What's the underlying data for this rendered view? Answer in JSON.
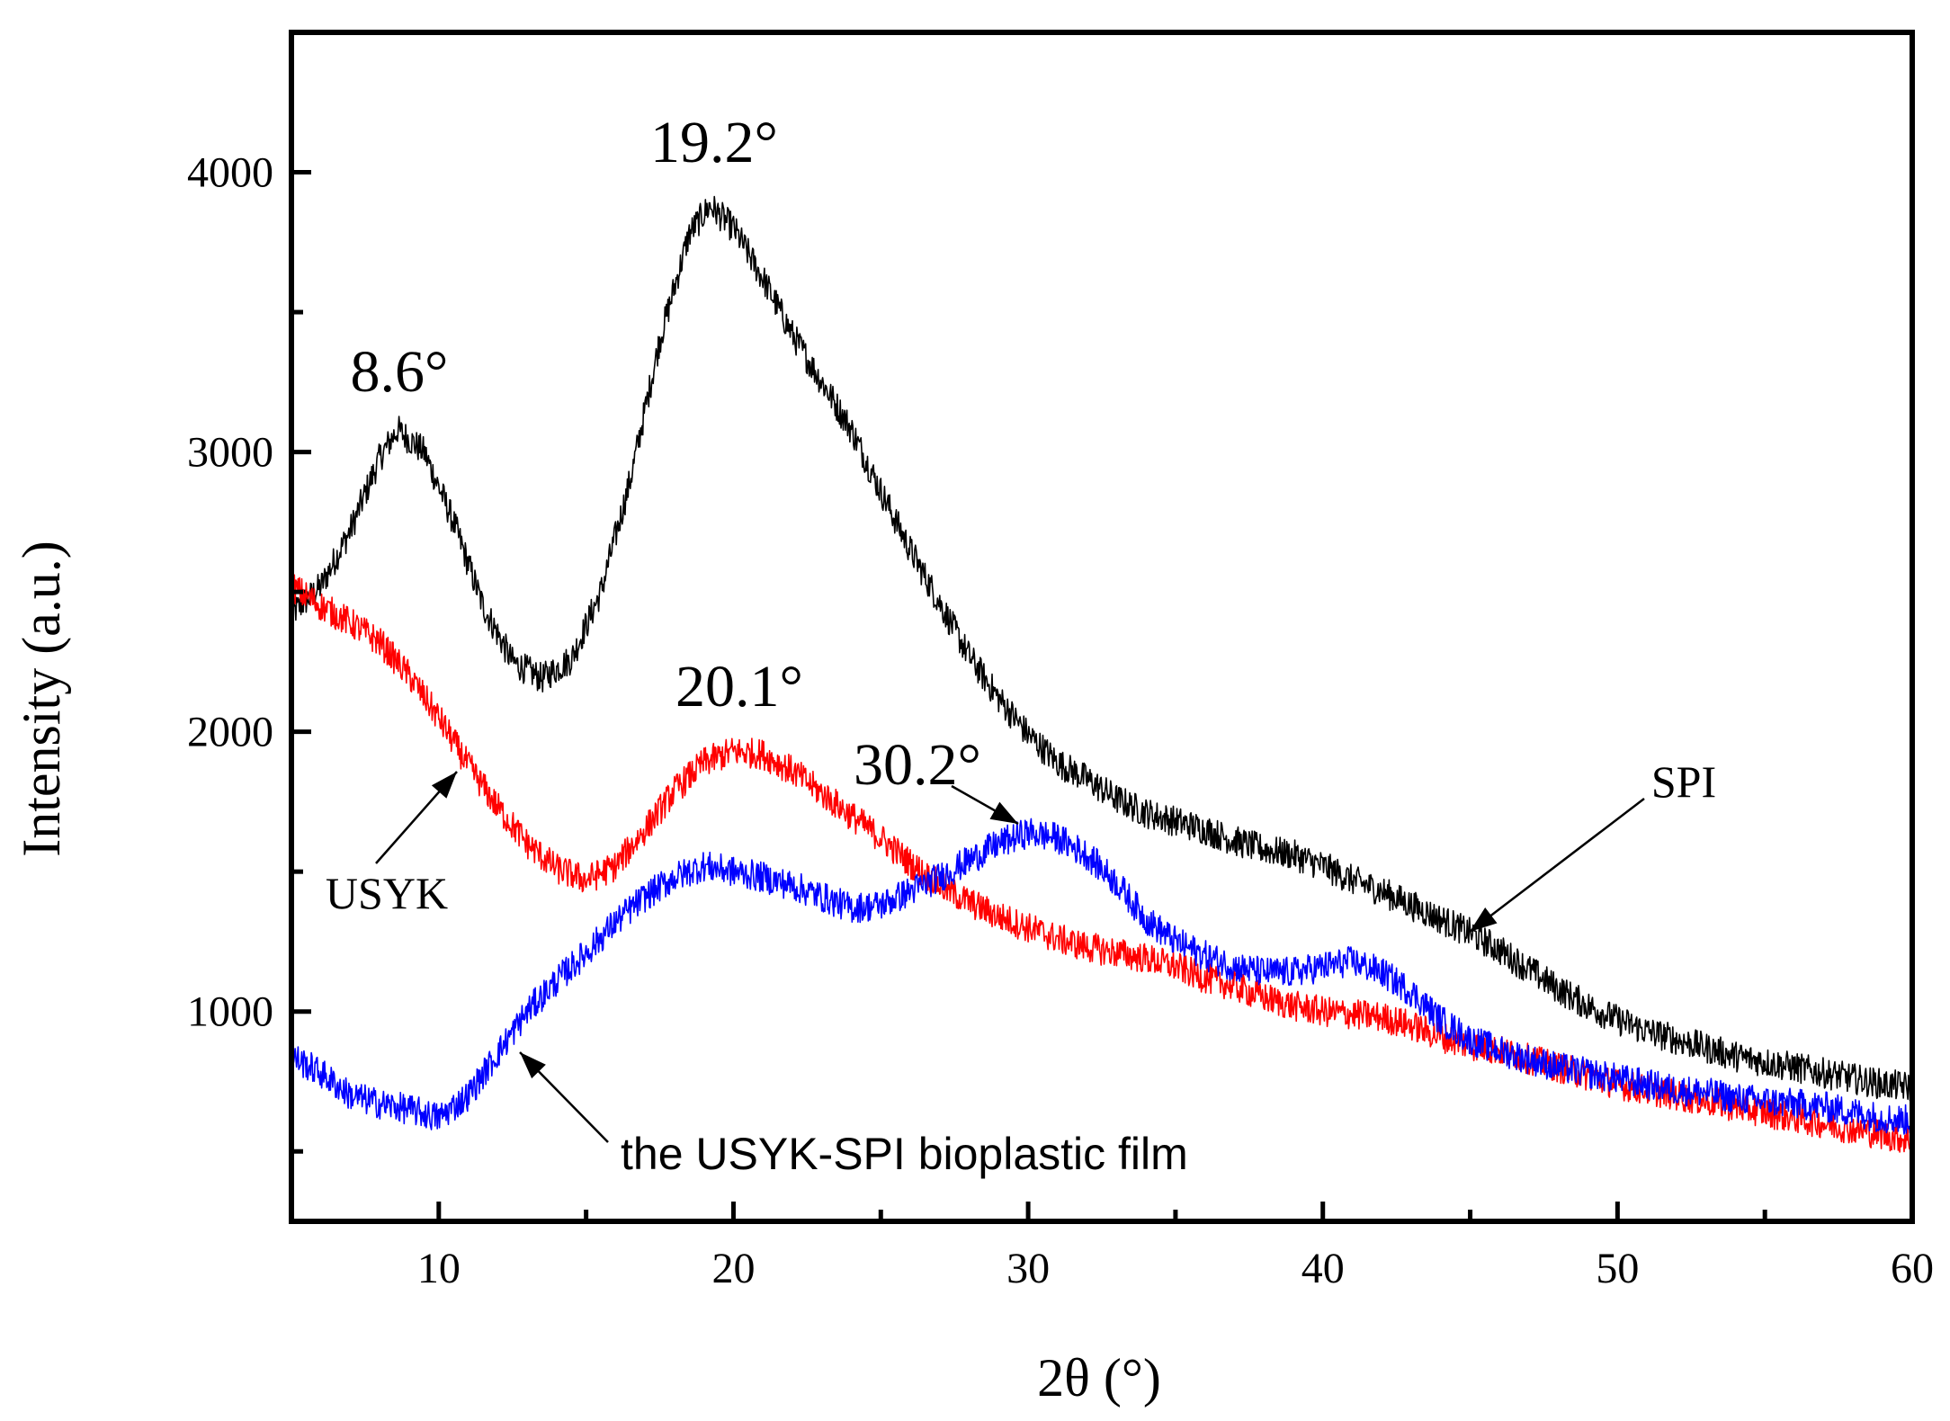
{
  "chart_data": {
    "type": "line",
    "title": "",
    "xlabel": "2θ (°)",
    "ylabel": "Intensity (a.u.)",
    "xlim": [
      5,
      60
    ],
    "ylim": [
      250,
      4500
    ],
    "x_ticks": [
      10,
      20,
      30,
      40,
      50,
      60
    ],
    "x_tick_labels": [
      "10",
      "20",
      "30",
      "40",
      "50",
      "60"
    ],
    "x_minor_ticks": [
      15,
      25,
      35,
      45,
      55
    ],
    "y_ticks": [
      1000,
      2000,
      3000,
      4000
    ],
    "y_tick_labels": [
      "1000",
      "2000",
      "3000",
      "4000"
    ],
    "y_minor_ticks": [
      500,
      1500,
      2500,
      3500
    ],
    "grid": false,
    "series": [
      {
        "name": "SPI",
        "color": "#000000",
        "points": [
          [
            5,
            2420
          ],
          [
            6,
            2520
          ],
          [
            7,
            2720
          ],
          [
            8,
            2980
          ],
          [
            8.6,
            3080
          ],
          [
            9.5,
            3000
          ],
          [
            10.5,
            2750
          ],
          [
            11.5,
            2450
          ],
          [
            12.5,
            2250
          ],
          [
            13.5,
            2190
          ],
          [
            14.5,
            2260
          ],
          [
            15.5,
            2500
          ],
          [
            16.5,
            2900
          ],
          [
            17.5,
            3400
          ],
          [
            18.5,
            3780
          ],
          [
            19.2,
            3880
          ],
          [
            20,
            3800
          ],
          [
            21,
            3620
          ],
          [
            22,
            3420
          ],
          [
            23,
            3250
          ],
          [
            24,
            3080
          ],
          [
            25,
            2860
          ],
          [
            26,
            2650
          ],
          [
            27,
            2460
          ],
          [
            28,
            2270
          ],
          [
            29,
            2120
          ],
          [
            30,
            1990
          ],
          [
            31,
            1890
          ],
          [
            32,
            1830
          ],
          [
            33,
            1760
          ],
          [
            34,
            1710
          ],
          [
            35,
            1680
          ],
          [
            36,
            1650
          ],
          [
            37,
            1610
          ],
          [
            38,
            1580
          ],
          [
            39,
            1560
          ],
          [
            40,
            1520
          ],
          [
            41,
            1470
          ],
          [
            42,
            1430
          ],
          [
            43,
            1380
          ],
          [
            44,
            1330
          ],
          [
            45,
            1280
          ],
          [
            46,
            1220
          ],
          [
            47,
            1150
          ],
          [
            48,
            1080
          ],
          [
            49,
            1020
          ],
          [
            50,
            970
          ],
          [
            51,
            930
          ],
          [
            52,
            900
          ],
          [
            53,
            870
          ],
          [
            54,
            840
          ],
          [
            55,
            820
          ],
          [
            56,
            800
          ],
          [
            57,
            780
          ],
          [
            58,
            760
          ],
          [
            59,
            740
          ],
          [
            60,
            730
          ]
        ]
      },
      {
        "name": "USYK",
        "color": "#ff0000",
        "points": [
          [
            5,
            2520
          ],
          [
            6,
            2450
          ],
          [
            7,
            2390
          ],
          [
            8,
            2320
          ],
          [
            9,
            2200
          ],
          [
            10,
            2050
          ],
          [
            11,
            1880
          ],
          [
            12,
            1730
          ],
          [
            13,
            1600
          ],
          [
            14,
            1510
          ],
          [
            15,
            1470
          ],
          [
            16,
            1520
          ],
          [
            17,
            1650
          ],
          [
            18,
            1790
          ],
          [
            19,
            1890
          ],
          [
            20,
            1930
          ],
          [
            21,
            1920
          ],
          [
            22,
            1860
          ],
          [
            23,
            1780
          ],
          [
            24,
            1700
          ],
          [
            25,
            1620
          ],
          [
            26,
            1530
          ],
          [
            27,
            1450
          ],
          [
            28,
            1390
          ],
          [
            29,
            1340
          ],
          [
            30,
            1300
          ],
          [
            31,
            1260
          ],
          [
            32,
            1230
          ],
          [
            33,
            1210
          ],
          [
            34,
            1190
          ],
          [
            35,
            1160
          ],
          [
            36,
            1120
          ],
          [
            37,
            1090
          ],
          [
            38,
            1050
          ],
          [
            39,
            1020
          ],
          [
            40,
            1000
          ],
          [
            41,
            990
          ],
          [
            42,
            980
          ],
          [
            43,
            950
          ],
          [
            44,
            910
          ],
          [
            45,
            880
          ],
          [
            46,
            860
          ],
          [
            47,
            830
          ],
          [
            48,
            800
          ],
          [
            49,
            770
          ],
          [
            50,
            740
          ],
          [
            51,
            720
          ],
          [
            52,
            700
          ],
          [
            53,
            680
          ],
          [
            54,
            660
          ],
          [
            55,
            640
          ],
          [
            56,
            620
          ],
          [
            57,
            600
          ],
          [
            58,
            580
          ],
          [
            59,
            560
          ],
          [
            60,
            540
          ]
        ]
      },
      {
        "name": "the USYK-SPI bioplastic film",
        "color": "#0000ff",
        "points": [
          [
            5,
            840
          ],
          [
            6,
            780
          ],
          [
            7,
            700
          ],
          [
            8,
            670
          ],
          [
            9,
            650
          ],
          [
            10,
            620
          ],
          [
            11,
            700
          ],
          [
            12,
            850
          ],
          [
            13,
            1000
          ],
          [
            14,
            1110
          ],
          [
            15,
            1210
          ],
          [
            16,
            1320
          ],
          [
            17,
            1410
          ],
          [
            18,
            1480
          ],
          [
            19,
            1520
          ],
          [
            20,
            1500
          ],
          [
            21,
            1480
          ],
          [
            22,
            1450
          ],
          [
            23,
            1410
          ],
          [
            24,
            1370
          ],
          [
            25,
            1380
          ],
          [
            26,
            1430
          ],
          [
            27,
            1480
          ],
          [
            28,
            1540
          ],
          [
            29,
            1600
          ],
          [
            30,
            1640
          ],
          [
            31,
            1620
          ],
          [
            32,
            1560
          ],
          [
            33,
            1460
          ],
          [
            34,
            1330
          ],
          [
            35,
            1250
          ],
          [
            36,
            1200
          ],
          [
            37,
            1160
          ],
          [
            38,
            1140
          ],
          [
            39,
            1140
          ],
          [
            40,
            1160
          ],
          [
            41,
            1180
          ],
          [
            42,
            1140
          ],
          [
            43,
            1070
          ],
          [
            44,
            970
          ],
          [
            45,
            900
          ],
          [
            46,
            860
          ],
          [
            47,
            830
          ],
          [
            48,
            800
          ],
          [
            49,
            780
          ],
          [
            50,
            760
          ],
          [
            51,
            740
          ],
          [
            52,
            720
          ],
          [
            53,
            710
          ],
          [
            54,
            690
          ],
          [
            55,
            680
          ],
          [
            56,
            670
          ],
          [
            57,
            660
          ],
          [
            58,
            640
          ],
          [
            59,
            620
          ],
          [
            60,
            610
          ]
        ]
      }
    ],
    "annotations": {
      "peak_8_6": "8.6°",
      "peak_19_2": "19.2°",
      "peak_20_1": "20.1°",
      "peak_30_2": "30.2°",
      "label_spi": "SPI",
      "label_usyk": "USYK",
      "label_film": "the USYK-SPI bioplastic film"
    }
  }
}
